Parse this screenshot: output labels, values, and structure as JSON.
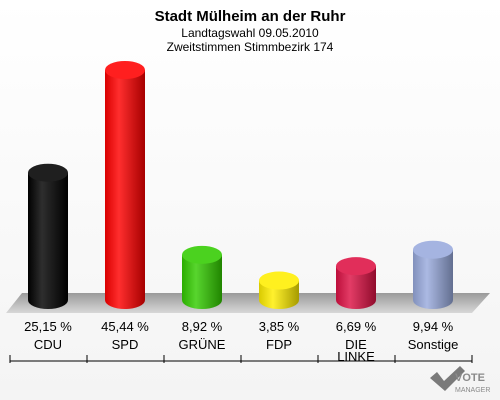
{
  "chart_data": {
    "type": "bar",
    "title": "Stadt Mülheim an der Ruhr",
    "subtitle_1": "Landtagswahl 09.05.2010",
    "subtitle_2": "Zweitstimmen Stimmbezirk 174",
    "categories": [
      {
        "lines": [
          "CDU"
        ]
      },
      {
        "lines": [
          "SPD"
        ]
      },
      {
        "lines": [
          "GRÜNE"
        ]
      },
      {
        "lines": [
          "FDP"
        ]
      },
      {
        "lines": [
          "DIE",
          "LINKE"
        ]
      },
      {
        "lines": [
          "Sonstige"
        ]
      }
    ],
    "values": [
      25.15,
      45.44,
      8.92,
      3.85,
      6.69,
      9.94
    ],
    "value_labels": [
      "25,15 %",
      "45,44 %",
      "8,92 %",
      "3,85 %",
      "6,69 %",
      "9,94 %"
    ],
    "colors": [
      "#000000",
      "#ff0000",
      "#33cc00",
      "#ffee00",
      "#dd1144",
      "#99aadd"
    ],
    "ylim": [
      0,
      50
    ],
    "grid": false,
    "legend": "none"
  },
  "watermark": {
    "line1": "VOTE",
    "line2": "MANAGER"
  }
}
